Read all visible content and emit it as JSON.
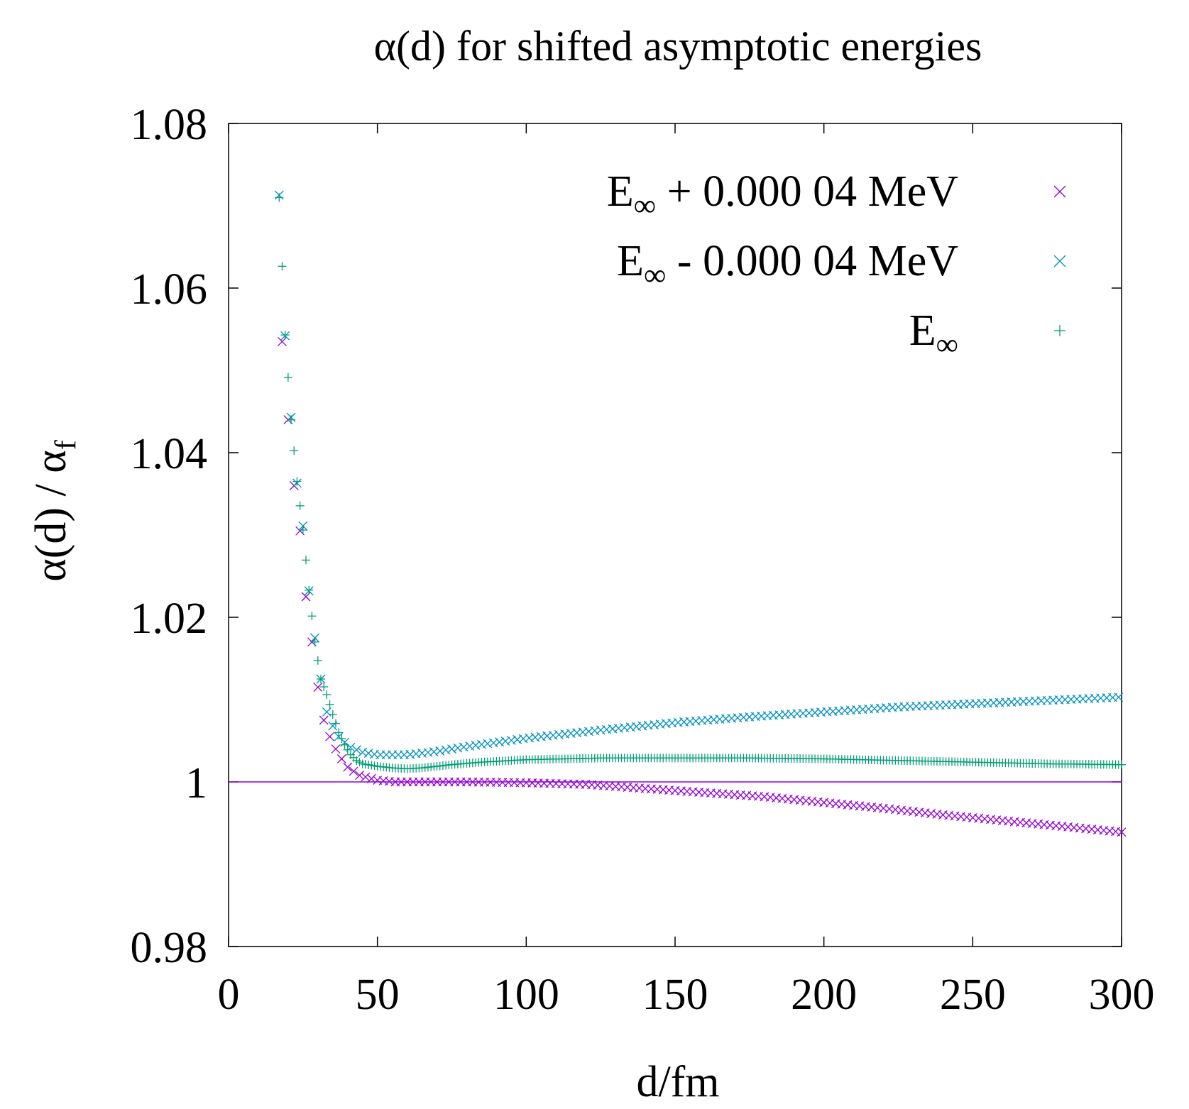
{
  "chart_data": {
    "type": "scatter",
    "title": "α(d) for shifted asymptotic energies",
    "xlabel": "d/fm",
    "ylabel_main": "α(d) / α",
    "ylabel_sub": "f",
    "xlim": [
      0,
      300
    ],
    "ylim": [
      0.98,
      1.08
    ],
    "xticks": [
      0,
      50,
      100,
      150,
      200,
      250,
      300
    ],
    "xtick_labels": [
      "0",
      "50",
      "100",
      "150",
      "200",
      "250",
      "300"
    ],
    "yticks": [
      0.98,
      1.0,
      1.02,
      1.04,
      1.06,
      1.08
    ],
    "ytick_labels": [
      "0.98",
      "1",
      "1.02",
      "1.04",
      "1.06",
      "1.08"
    ],
    "legend_position": "top-right",
    "reference_line": {
      "y": 1.0,
      "color": "#9400d3"
    },
    "series": [
      {
        "name": "E∞ + 0.000 04 MeV",
        "legend_main": "E",
        "legend_sub": "∞",
        "legend_rest": "+ 0.000 04 MeV",
        "marker": "x",
        "color": "#9400d3",
        "start": 18,
        "end": 300,
        "step": 2,
        "anchors": [
          [
            18,
            1.0535
          ],
          [
            20,
            1.044
          ],
          [
            22,
            1.036
          ],
          [
            24,
            1.0305
          ],
          [
            26,
            1.0225
          ],
          [
            28,
            1.017
          ],
          [
            30,
            1.0115
          ],
          [
            32,
            1.0075
          ],
          [
            34,
            1.0055
          ],
          [
            36,
            1.004
          ],
          [
            38,
            1.0028
          ],
          [
            40,
            1.0018
          ],
          [
            44,
            1.0008
          ],
          [
            50,
            1.0002
          ],
          [
            56,
            1.0
          ],
          [
            80,
            1.0
          ],
          [
            100,
            0.9999
          ],
          [
            120,
            0.9997
          ],
          [
            140,
            0.9992
          ],
          [
            160,
            0.9987
          ],
          [
            180,
            0.9982
          ],
          [
            200,
            0.9975
          ],
          [
            220,
            0.9968
          ],
          [
            240,
            0.996
          ],
          [
            260,
            0.9953
          ],
          [
            280,
            0.9946
          ],
          [
            300,
            0.9939
          ]
        ]
      },
      {
        "name": "E∞ - 0.000 04 MeV",
        "legend_main": "E",
        "legend_sub": "∞",
        "legend_rest": "- 0.000 04 MeV",
        "marker": "x",
        "color": "#0090c0",
        "start": 17,
        "end": 300,
        "step": 2,
        "anchors": [
          [
            17,
            1.0713
          ],
          [
            19,
            1.0542
          ],
          [
            21,
            1.0443
          ],
          [
            23,
            1.0363
          ],
          [
            25,
            1.0311
          ],
          [
            27,
            1.0232
          ],
          [
            29,
            1.0175
          ],
          [
            31,
            1.0125
          ],
          [
            33,
            1.0085
          ],
          [
            35,
            1.0068
          ],
          [
            37,
            1.0055
          ],
          [
            39,
            1.0048
          ],
          [
            41,
            1.0042
          ],
          [
            45,
            1.0036
          ],
          [
            50,
            1.0033
          ],
          [
            60,
            1.0033
          ],
          [
            70,
            1.0037
          ],
          [
            80,
            1.0043
          ],
          [
            100,
            1.0053
          ],
          [
            125,
            1.0063
          ],
          [
            150,
            1.0072
          ],
          [
            175,
            1.0079
          ],
          [
            200,
            1.0085
          ],
          [
            225,
            1.0091
          ],
          [
            250,
            1.0095
          ],
          [
            275,
            1.0099
          ],
          [
            300,
            1.0103
          ]
        ]
      },
      {
        "name": "E∞",
        "legend_main": "E",
        "legend_sub": "∞",
        "legend_rest": "",
        "marker": "+",
        "color": "#009e73",
        "start": 17,
        "end": 300,
        "step": 1,
        "anchors": [
          [
            17,
            1.071
          ],
          [
            19,
            1.0543
          ],
          [
            21,
            1.044
          ],
          [
            23,
            1.0365
          ],
          [
            25,
            1.0306
          ],
          [
            27,
            1.0233
          ],
          [
            29,
            1.017
          ],
          [
            31,
            1.0125
          ],
          [
            33,
            1.0106
          ],
          [
            35,
            1.0082
          ],
          [
            37,
            1.006
          ],
          [
            39,
            1.0045
          ],
          [
            41,
            1.0033
          ],
          [
            43,
            1.0026
          ],
          [
            45,
            1.0022
          ],
          [
            50,
            1.0019
          ],
          [
            55,
            1.0017
          ],
          [
            60,
            1.0016
          ],
          [
            65,
            1.0017
          ],
          [
            75,
            1.0021
          ],
          [
            85,
            1.0024
          ],
          [
            100,
            1.0027
          ],
          [
            125,
            1.0029
          ],
          [
            150,
            1.0029
          ],
          [
            175,
            1.0029
          ],
          [
            200,
            1.0028
          ],
          [
            225,
            1.0026
          ],
          [
            250,
            1.0024
          ],
          [
            275,
            1.0022
          ],
          [
            300,
            1.0021
          ]
        ]
      }
    ]
  }
}
